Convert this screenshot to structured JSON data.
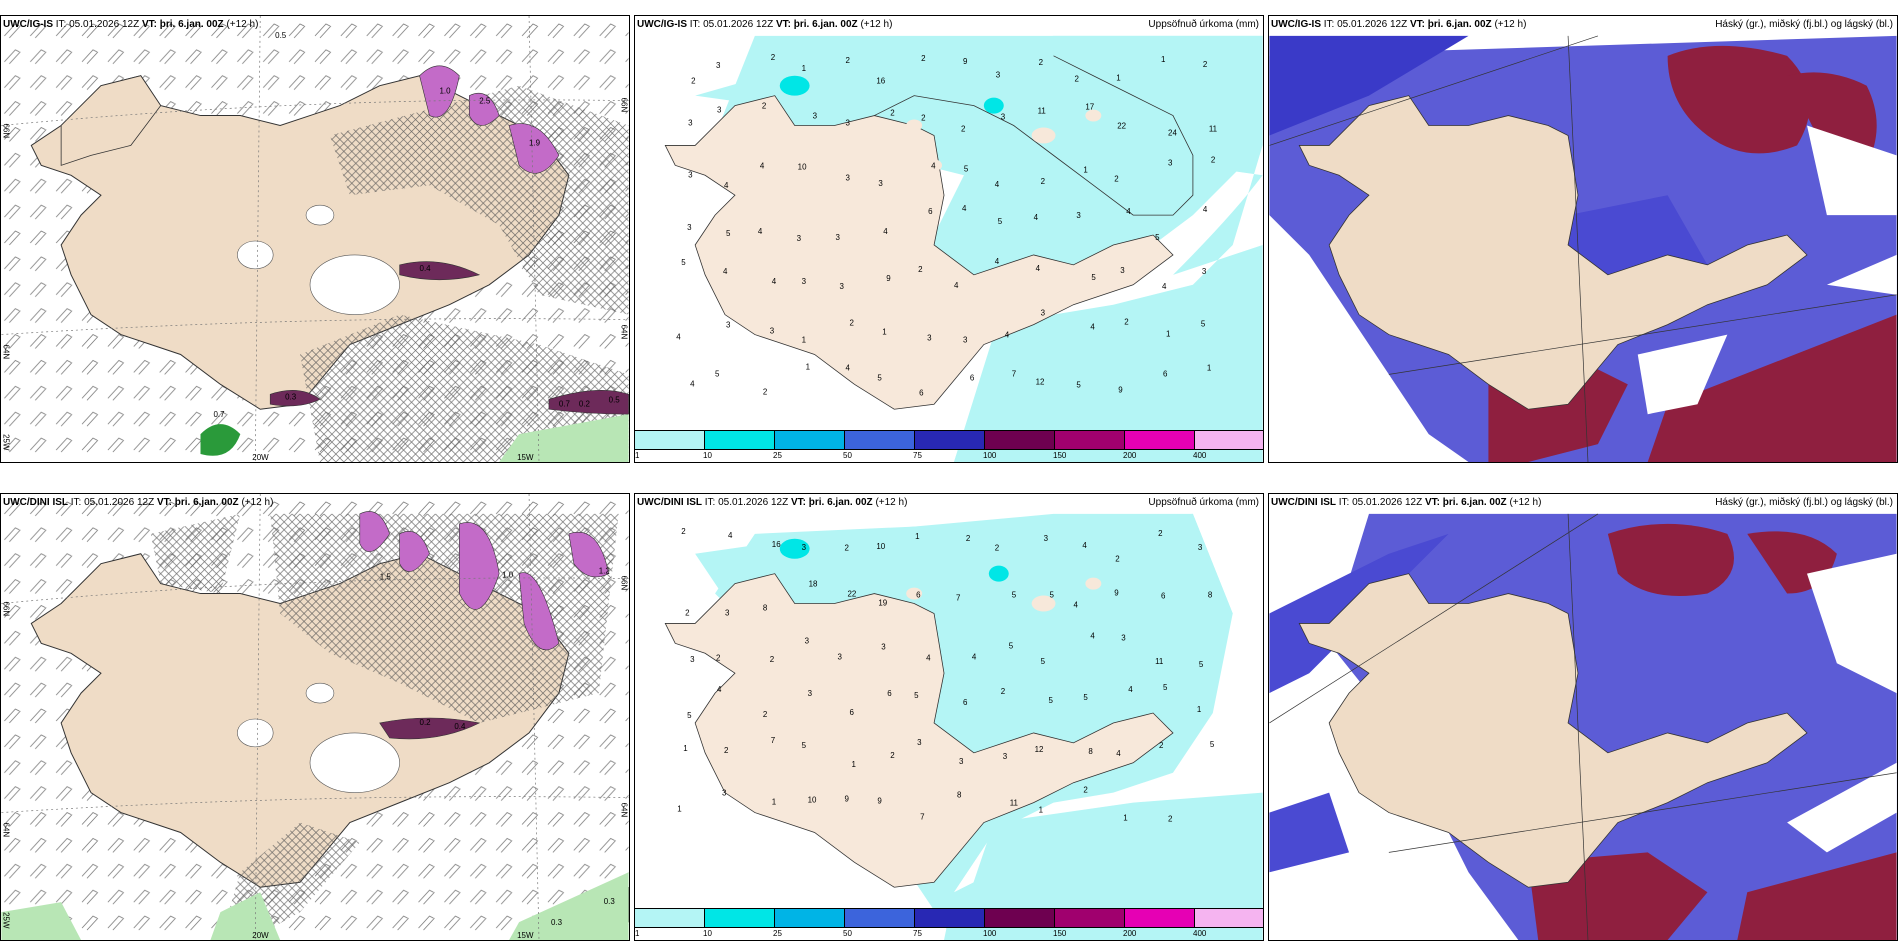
{
  "rows": [
    {
      "model": "UWC/IG-IS",
      "init": "IT: 05.01.2026 12Z",
      "valid_prefix": "VT:",
      "valid": "þri. 6.jan. 00Z",
      "lead": "(+12 h)"
    },
    {
      "model": "UWC/DINI ISL",
      "init": "IT: 05.01.2026 12Z",
      "valid_prefix": "VT:",
      "valid": "þri. 6.jan. 00Z",
      "lead": "(+12 h)"
    }
  ],
  "precip_title": "Uppsöfnuð úrkoma (mm)",
  "cloud_title": "Háský (gr.), miðský (fj.bl.) og lágský (bl.)",
  "colorbar": {
    "ticks": [
      "1",
      "10",
      "25",
      "50",
      "75",
      "100",
      "150",
      "200",
      "400"
    ],
    "colors": [
      "#b4f5f5",
      "#00e6e6",
      "#00b4e6",
      "#3c64dc",
      "#2828b4",
      "#6e0050",
      "#a0006e",
      "#e600b4",
      "#f5b4f0"
    ]
  },
  "wind_panel": {
    "top": {
      "lat_labels": [
        "66N",
        "64N",
        "66N",
        "64N"
      ],
      "lon_labels": [
        "25W",
        "20W",
        "15W"
      ],
      "values": [
        "0.5",
        "1.0",
        "2.5",
        "1.9",
        "0.4",
        "0.7",
        "0.2",
        "0.5",
        "0.3",
        "0.7"
      ]
    },
    "bottom": {
      "lat_labels": [
        "66N",
        "64N",
        "66N",
        "64N"
      ],
      "lon_labels": [
        "25W",
        "20W",
        "15W"
      ],
      "values": [
        "1.5",
        "1.0",
        "1.2",
        "0.4",
        "0.2",
        "0.3",
        "0.3"
      ]
    }
  },
  "precip_numbers": {
    "top": [
      "2",
      "3",
      "2",
      "1",
      "2",
      "16",
      "2",
      "9",
      "3",
      "2",
      "2",
      "1",
      "1",
      "2",
      "3",
      "3",
      "2",
      "3",
      "3",
      "2",
      "2",
      "2",
      "3",
      "11",
      "17",
      "22",
      "24",
      "11",
      "3",
      "4",
      "4",
      "10",
      "3",
      "3",
      "4",
      "5",
      "4",
      "2",
      "1",
      "2",
      "3",
      "2",
      "3",
      "5",
      "4",
      "3",
      "3",
      "4",
      "6",
      "4",
      "5",
      "4",
      "3",
      "4",
      "5",
      "4",
      "5",
      "4",
      "4",
      "3",
      "3",
      "9",
      "2",
      "4",
      "4",
      "4",
      "5",
      "3",
      "4",
      "3",
      "4",
      "3",
      "3",
      "1",
      "2",
      "1",
      "3",
      "3",
      "4",
      "3",
      "4",
      "2",
      "1",
      "5",
      "4",
      "5",
      "2",
      "1",
      "4",
      "5",
      "6",
      "6",
      "7",
      "12",
      "5",
      "9",
      "6",
      "1"
    ],
    "bottom": [
      "2",
      "4",
      "16",
      "3",
      "2",
      "10",
      "1",
      "2",
      "2",
      "3",
      "4",
      "2",
      "2",
      "3",
      "2",
      "3",
      "8",
      "18",
      "22",
      "19",
      "6",
      "7",
      "5",
      "5",
      "4",
      "9",
      "6",
      "8",
      "3",
      "2",
      "2",
      "3",
      "3",
      "3",
      "4",
      "4",
      "5",
      "5",
      "4",
      "3",
      "11",
      "5",
      "5",
      "4",
      "2",
      "3",
      "6",
      "6",
      "5",
      "6",
      "2",
      "5",
      "5",
      "4",
      "5",
      "1",
      "1",
      "2",
      "7",
      "5",
      "1",
      "2",
      "3",
      "3",
      "3",
      "12",
      "8",
      "4",
      "2",
      "5",
      "1",
      "3",
      "1",
      "10",
      "9",
      "9",
      "7",
      "8",
      "11",
      "1",
      "2",
      "1",
      "2"
    ]
  }
}
